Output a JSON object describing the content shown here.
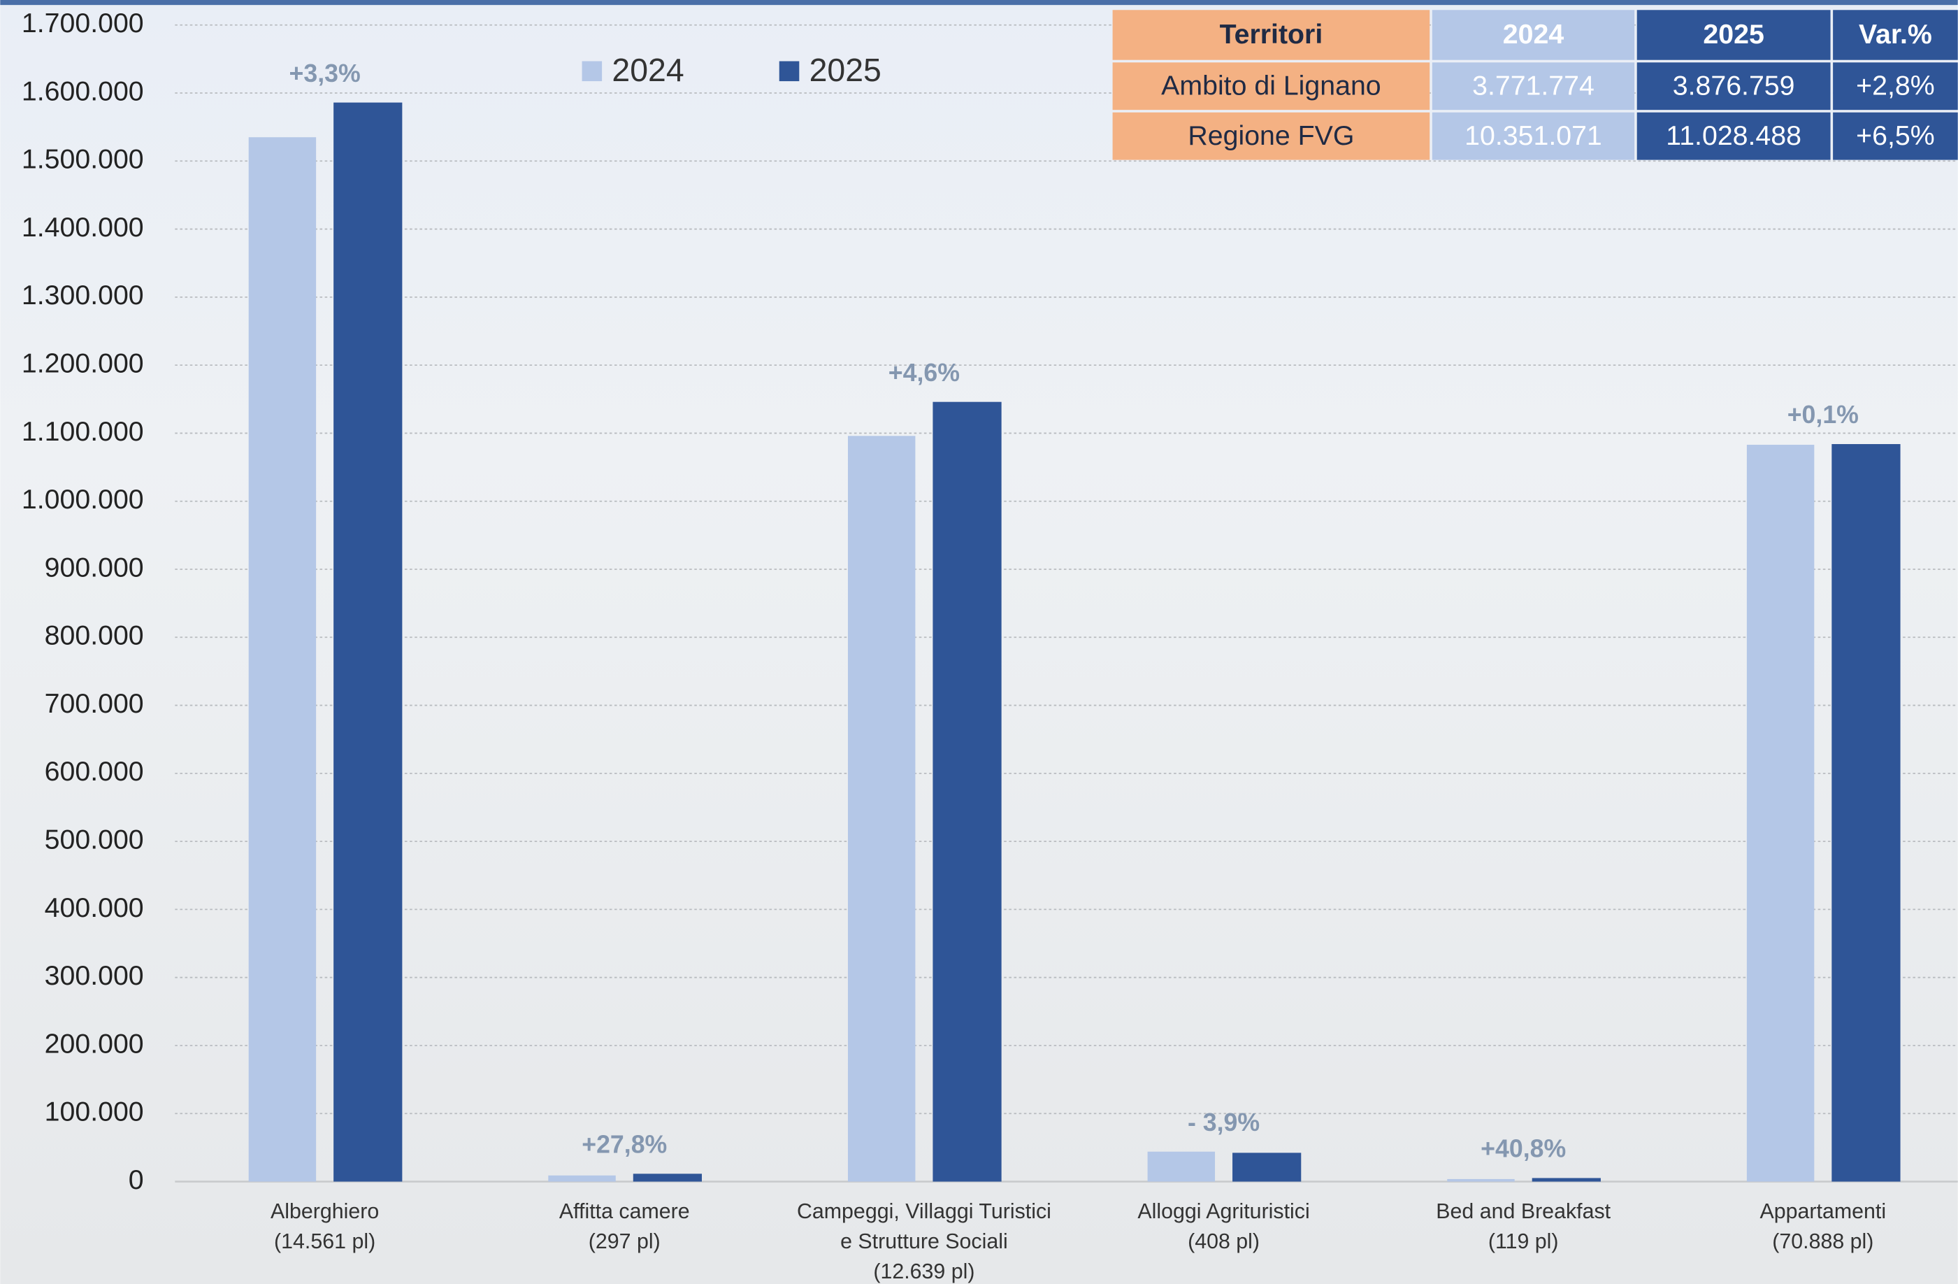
{
  "chart_data": {
    "type": "bar",
    "categories": [
      [
        "Alberghiero",
        "(14.561 pl)"
      ],
      [
        "Affitta camere",
        "(297 pl)"
      ],
      [
        "Campeggi, Villaggi Turistici",
        "e Strutture Sociali",
        "(12.639 pl)"
      ],
      [
        "Alloggi Agrituristici",
        "(408 pl)"
      ],
      [
        "Bed and Breakfast",
        "(119 pl)"
      ],
      [
        "Appartamenti",
        "(70.888 pl)"
      ]
    ],
    "series": [
      {
        "name": "2024",
        "color": "#b4c7e7",
        "values": [
          1535000,
          9000,
          1096000,
          44000,
          3700,
          1083000
        ]
      },
      {
        "name": "2025",
        "color": "#2f5597",
        "values": [
          1586000,
          11500,
          1146000,
          42300,
          5200,
          1084000
        ]
      }
    ],
    "annotations": [
      "+3,3%",
      "+27,8%",
      "+4,6%",
      "- 3,9%",
      "+40,8%",
      "+0,1%"
    ],
    "ylim": [
      0,
      1700000
    ],
    "yticks": [
      0,
      {
        "value": 100000,
        "label": "100.000"
      },
      {
        "value": 200000,
        "label": "200.000"
      },
      {
        "value": 300000,
        "label": "300.000"
      },
      {
        "value": 400000,
        "label": "400.000"
      },
      {
        "value": 500000,
        "label": "500.000"
      },
      {
        "value": 600000,
        "label": "600.000"
      },
      {
        "value": 700000,
        "label": "700.000"
      },
      {
        "value": 800000,
        "label": "800.000"
      },
      {
        "value": 900000,
        "label": "900.000"
      },
      {
        "value": 1000000,
        "label": "1.000.000"
      },
      {
        "value": 1100000,
        "label": "1.100.000"
      },
      {
        "value": 1200000,
        "label": "1.200.000"
      },
      {
        "value": 1300000,
        "label": "1.300.000"
      },
      {
        "value": 1400000,
        "label": "1.400.000"
      },
      {
        "value": 1500000,
        "label": "1.500.000"
      },
      {
        "value": 1600000,
        "label": "1.600.000"
      },
      {
        "value": 1700000,
        "label": "1.700.000"
      }
    ],
    "grid": true,
    "legend": "top"
  },
  "table": {
    "header": [
      "Territori",
      "2024",
      "2025",
      "Var.%"
    ],
    "rows": [
      [
        "Ambito di Lignano",
        "3.771.774",
        "3.876.759",
        "+2,8%"
      ],
      [
        "Regione FVG",
        "10.351.071",
        "11.028.488",
        "+6,5%"
      ]
    ]
  }
}
